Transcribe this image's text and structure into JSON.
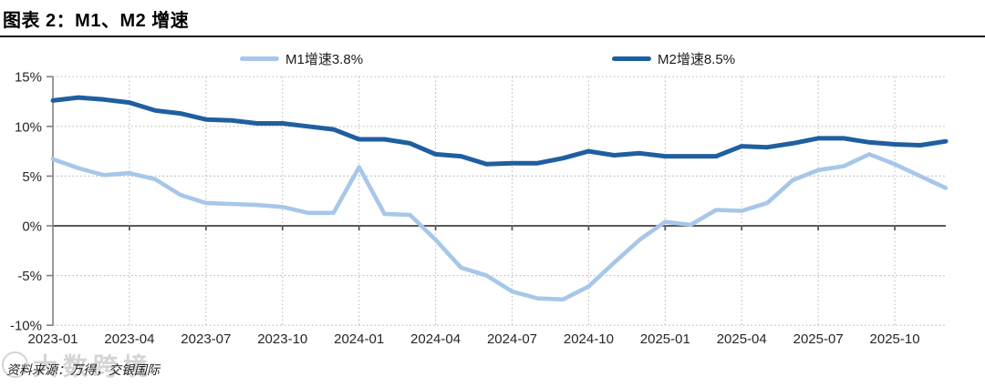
{
  "header": {
    "title": "图表 2：M1、M2 增速"
  },
  "legend": {
    "items": [
      {
        "label": "M1增速3.8%",
        "color": "#A7C7E9"
      },
      {
        "label": "M2增速8.5%",
        "color": "#1F5FA0"
      }
    ]
  },
  "footer": {
    "source_note": "资料来源：万得，交银国际",
    "watermark": "大数跨境"
  },
  "chart_data": {
    "type": "line",
    "title": "图表 2：M1、M2 增速",
    "x": [
      "2023-01",
      "2023-02",
      "2023-03",
      "2023-04",
      "2023-05",
      "2023-06",
      "2023-07",
      "2023-08",
      "2023-09",
      "2023-10",
      "2023-11",
      "2023-12",
      "2024-01",
      "2024-02",
      "2024-03",
      "2024-04",
      "2024-05",
      "2024-06",
      "2024-07",
      "2024-08",
      "2024-09",
      "2024-10",
      "2024-11",
      "2024-12",
      "2025-01",
      "2025-02",
      "2025-03",
      "2025-04",
      "2025-05",
      "2025-06",
      "2025-07",
      "2025-08",
      "2025-09",
      "2025-10",
      "2025-11",
      "2025-12"
    ],
    "x_tick_labels": [
      "2023-01",
      "2023-04",
      "2023-07",
      "2023-10",
      "2024-01",
      "2024-04",
      "2024-07",
      "2024-10",
      "2025-01",
      "2025-04",
      "2025-07",
      "2025-10"
    ],
    "y_ticks": [
      "15%",
      "10%",
      "5%",
      "0%",
      "-5%",
      "-10%"
    ],
    "y_tick_values": [
      15,
      10,
      5,
      0,
      -5,
      -10
    ],
    "ylim": [
      -10,
      15
    ],
    "grid": {
      "horizontal": "dotted",
      "vertical": "dotted-quarterly",
      "zero_line": "solid"
    },
    "legend_position": "top",
    "series": [
      {
        "name": "M1增速",
        "latest": 3.8,
        "color": "#A7C7E9",
        "width": 4.6,
        "values": [
          6.7,
          5.8,
          5.1,
          5.3,
          4.7,
          3.1,
          2.3,
          2.2,
          2.1,
          1.9,
          1.3,
          1.3,
          5.9,
          1.2,
          1.1,
          -1.4,
          -4.2,
          -5.0,
          -6.6,
          -7.3,
          -7.4,
          -6.1,
          -3.7,
          -1.4,
          0.4,
          0.1,
          1.6,
          1.5,
          2.3,
          4.6,
          5.6,
          6.0,
          7.2,
          6.2,
          5.0,
          3.8
        ]
      },
      {
        "name": "M2增速",
        "latest": 8.5,
        "color": "#1F5FA0",
        "width": 5,
        "values": [
          12.6,
          12.9,
          12.7,
          12.4,
          11.6,
          11.3,
          10.7,
          10.6,
          10.3,
          10.3,
          10.0,
          9.7,
          8.7,
          8.7,
          8.3,
          7.2,
          7.0,
          6.2,
          6.3,
          6.3,
          6.8,
          7.5,
          7.1,
          7.3,
          7.0,
          7.0,
          7.0,
          8.0,
          7.9,
          8.3,
          8.8,
          8.8,
          8.4,
          8.2,
          8.1,
          8.5
        ]
      }
    ],
    "colors": {
      "grid": "#bdbdbd",
      "axis": "#808080",
      "zero_line": "#595959",
      "tick_label": "#262626"
    }
  }
}
